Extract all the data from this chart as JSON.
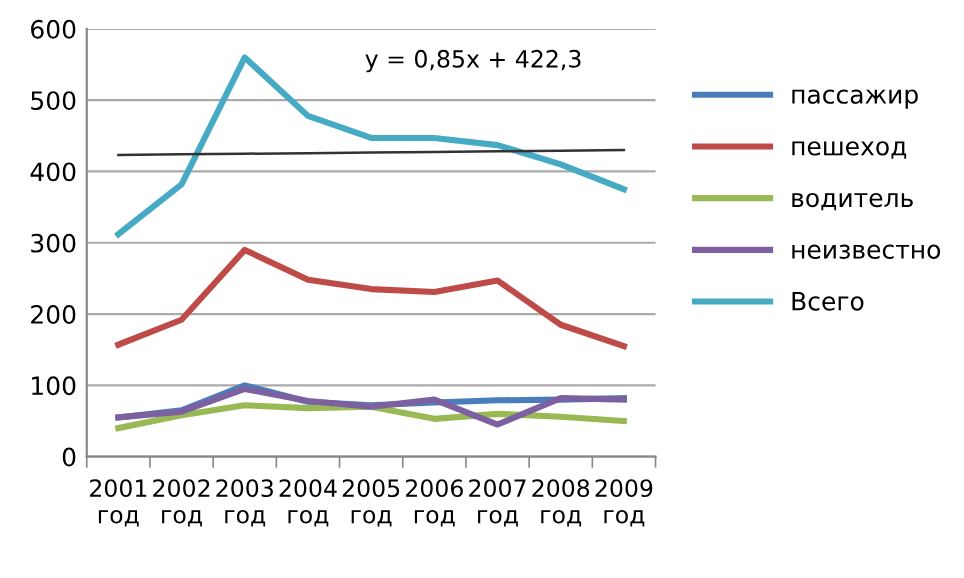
{
  "chart_data": {
    "type": "line",
    "categories": [
      "2001\nгод",
      "2002\nгод",
      "2003\nгод",
      "2004\nгод",
      "2005\nгод",
      "2006\nгод",
      "2007\nгод",
      "2008\nгод",
      "2009\nгод"
    ],
    "series": [
      {
        "name": "пассажир",
        "color": "#4a7ebb",
        "values": [
          55,
          65,
          100,
          77,
          72,
          76,
          79,
          80,
          82
        ]
      },
      {
        "name": "пешеход",
        "color": "#be4b48",
        "values": [
          157,
          192,
          290,
          248,
          235,
          231,
          247,
          185,
          155
        ]
      },
      {
        "name": "водитель",
        "color": "#98b954",
        "values": [
          40,
          58,
          72,
          68,
          70,
          53,
          60,
          56,
          50
        ]
      },
      {
        "name": "неизвестно",
        "color": "#7d60a0",
        "values": [
          55,
          63,
          95,
          78,
          70,
          80,
          45,
          82,
          80
        ]
      },
      {
        "name": "Всего",
        "color": "#46aac5",
        "values": [
          312,
          382,
          560,
          478,
          447,
          447,
          437,
          410,
          375
        ]
      },
      {
        "color": "#333333",
        "values": [
          423.2,
          424,
          424.9,
          425.7,
          426.6,
          427.4,
          428.3,
          429.1,
          430
        ]
      }
    ],
    "annotations": [
      "y = 0,85x + 422,3"
    ],
    "ylim": [
      0,
      600
    ],
    "yticks": [
      0,
      100,
      200,
      300,
      400,
      500,
      600
    ],
    "grid": "y",
    "legend": "right",
    "marker": "none",
    "line_style": "solid"
  }
}
